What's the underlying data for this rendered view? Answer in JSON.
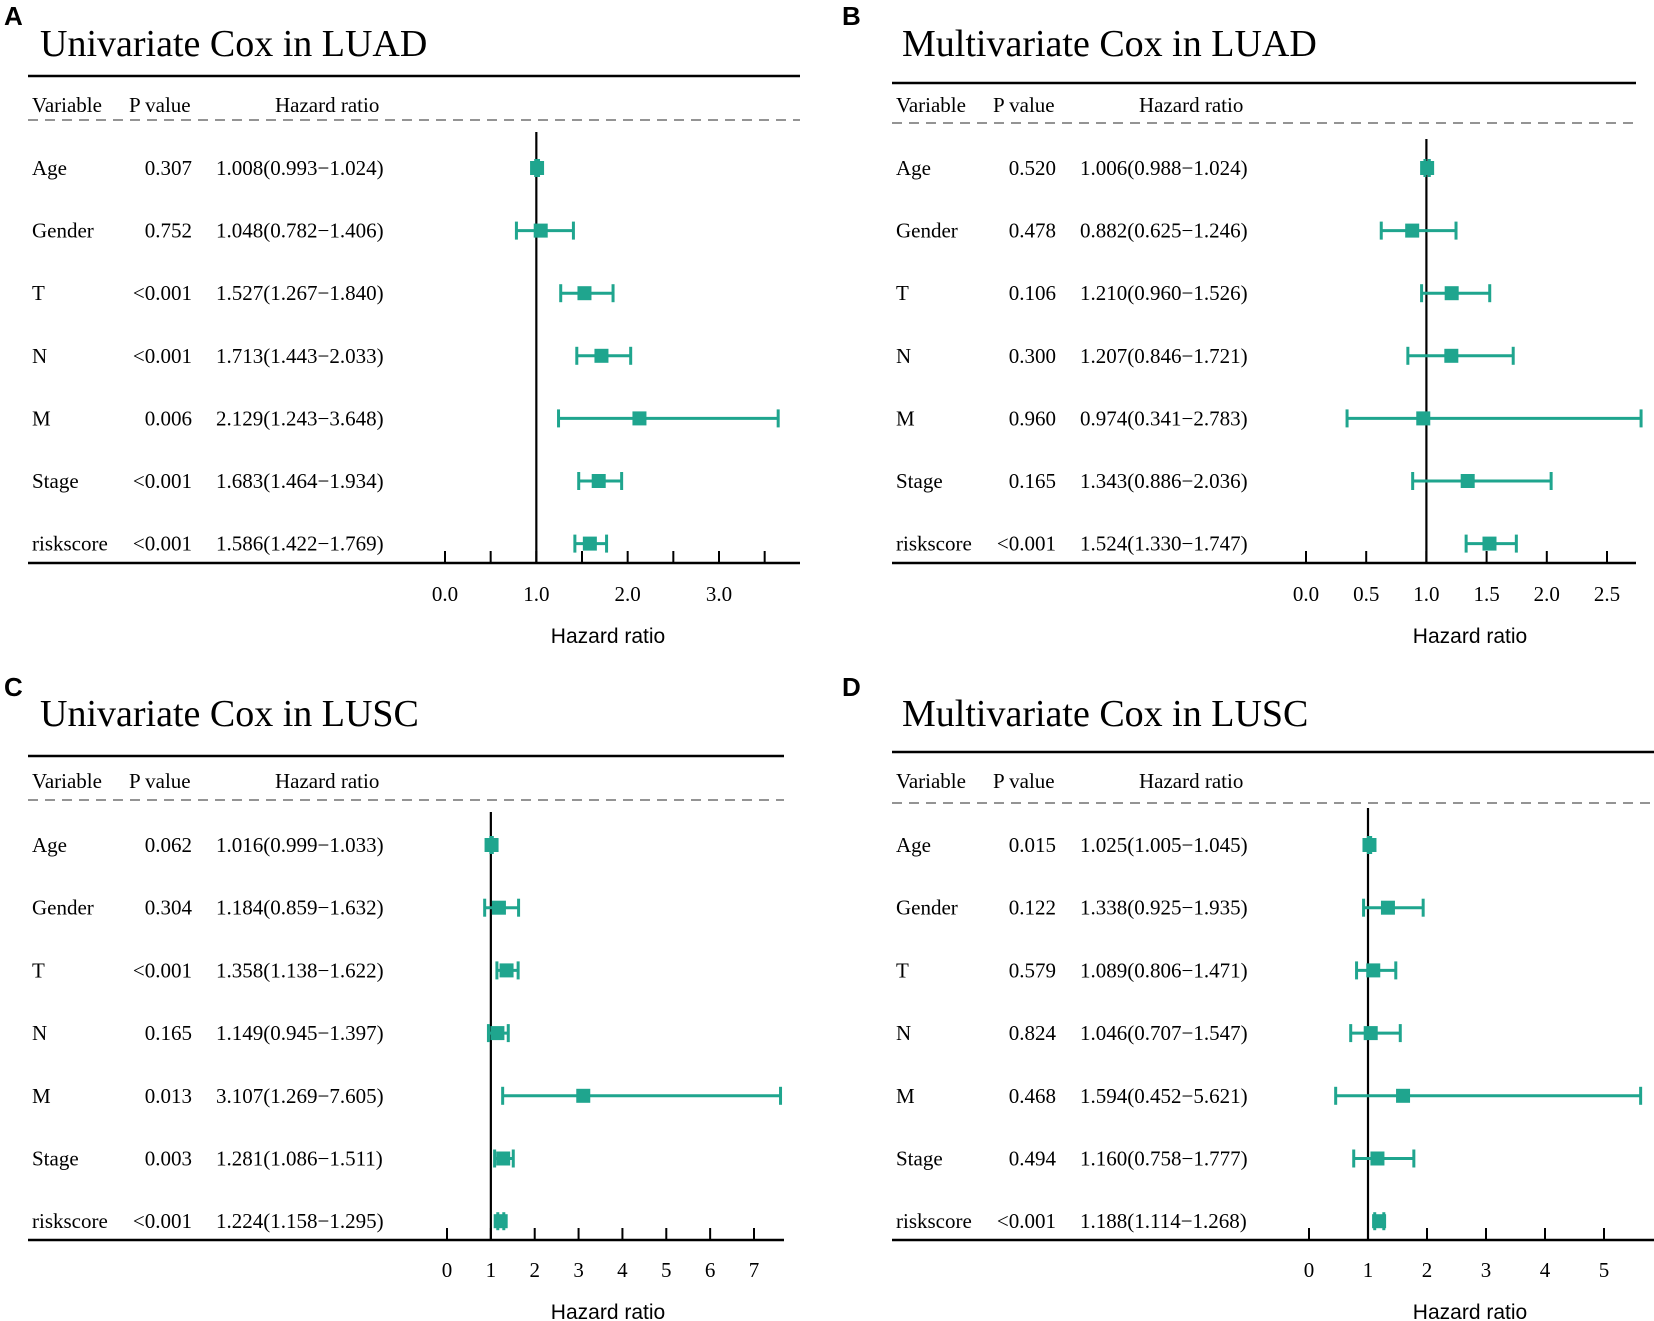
{
  "headers": {
    "variable": "Variable",
    "pvalue": "P value",
    "hr": "Hazard ratio"
  },
  "marker_color": "#1fa58e",
  "chart_data": [
    {
      "panel": "A",
      "type": "forest",
      "title": "Univariate Cox in LUAD",
      "xlabel": "Hazard ratio",
      "ticks": [
        0.0,
        0.5,
        1.0,
        1.5,
        2.0,
        2.5,
        3.0,
        3.5
      ],
      "tick_labels": [
        "0.0",
        "",
        "1.0",
        "",
        "2.0",
        "",
        "3.0",
        ""
      ],
      "ref_line": 1,
      "xlim": [
        0.0,
        3.8
      ],
      "rows": [
        {
          "variable": "Age",
          "pvalue": "0.307",
          "hr_text": "1.008(0.993−1.024)",
          "hr": 1.008,
          "lower": 0.993,
          "upper": 1.024
        },
        {
          "variable": "Gender",
          "pvalue": "0.752",
          "hr_text": "1.048(0.782−1.406)",
          "hr": 1.048,
          "lower": 0.782,
          "upper": 1.406
        },
        {
          "variable": "T",
          "pvalue": "<0.001",
          "hr_text": "1.527(1.267−1.840)",
          "hr": 1.527,
          "lower": 1.267,
          "upper": 1.84
        },
        {
          "variable": "N",
          "pvalue": "<0.001",
          "hr_text": "1.713(1.443−2.033)",
          "hr": 1.713,
          "lower": 1.443,
          "upper": 2.033
        },
        {
          "variable": "M",
          "pvalue": "0.006",
          "hr_text": "2.129(1.243−3.648)",
          "hr": 2.129,
          "lower": 1.243,
          "upper": 3.648
        },
        {
          "variable": "Stage",
          "pvalue": "<0.001",
          "hr_text": "1.683(1.464−1.934)",
          "hr": 1.683,
          "lower": 1.464,
          "upper": 1.934
        },
        {
          "variable": "riskscore",
          "pvalue": "<0.001",
          "hr_text": "1.586(1.422−1.769)",
          "hr": 1.586,
          "lower": 1.422,
          "upper": 1.769
        }
      ]
    },
    {
      "panel": "B",
      "type": "forest",
      "title": "Multivariate Cox in LUAD",
      "xlabel": "Hazard ratio",
      "ticks": [
        0.0,
        0.5,
        1.0,
        1.5,
        2.0,
        2.5
      ],
      "tick_labels": [
        "0.0",
        "0.5",
        "1.0",
        "1.5",
        "2.0",
        "2.5"
      ],
      "ref_line": 1,
      "xlim": [
        0.0,
        2.8
      ],
      "rows": [
        {
          "variable": "Age",
          "pvalue": "0.520",
          "hr_text": "1.006(0.988−1.024)",
          "hr": 1.006,
          "lower": 0.988,
          "upper": 1.024
        },
        {
          "variable": "Gender",
          "pvalue": "0.478",
          "hr_text": "0.882(0.625−1.246)",
          "hr": 0.882,
          "lower": 0.625,
          "upper": 1.246
        },
        {
          "variable": "T",
          "pvalue": "0.106",
          "hr_text": "1.210(0.960−1.526)",
          "hr": 1.21,
          "lower": 0.96,
          "upper": 1.526
        },
        {
          "variable": "N",
          "pvalue": "0.300",
          "hr_text": "1.207(0.846−1.721)",
          "hr": 1.207,
          "lower": 0.846,
          "upper": 1.721
        },
        {
          "variable": "M",
          "pvalue": "0.960",
          "hr_text": "0.974(0.341−2.783)",
          "hr": 0.974,
          "lower": 0.341,
          "upper": 2.783
        },
        {
          "variable": "Stage",
          "pvalue": "0.165",
          "hr_text": "1.343(0.886−2.036)",
          "hr": 1.343,
          "lower": 0.886,
          "upper": 2.036
        },
        {
          "variable": "riskscore",
          "pvalue": "<0.001",
          "hr_text": "1.524(1.330−1.747)",
          "hr": 1.524,
          "lower": 1.33,
          "upper": 1.747
        }
      ]
    },
    {
      "panel": "C",
      "type": "forest",
      "title": "Univariate Cox in LUSC",
      "xlabel": "Hazard ratio",
      "ticks": [
        0,
        1,
        2,
        3,
        4,
        5,
        6,
        7
      ],
      "tick_labels": [
        "0",
        "1",
        "2",
        "3",
        "4",
        "5",
        "6",
        "7"
      ],
      "ref_line": 1,
      "xlim": [
        0,
        7.75
      ],
      "rows": [
        {
          "variable": "Age",
          "pvalue": "0.062",
          "hr_text": "1.016(0.999−1.033)",
          "hr": 1.016,
          "lower": 0.999,
          "upper": 1.033
        },
        {
          "variable": "Gender",
          "pvalue": "0.304",
          "hr_text": "1.184(0.859−1.632)",
          "hr": 1.184,
          "lower": 0.859,
          "upper": 1.632
        },
        {
          "variable": "T",
          "pvalue": "<0.001",
          "hr_text": "1.358(1.138−1.622)",
          "hr": 1.358,
          "lower": 1.138,
          "upper": 1.622
        },
        {
          "variable": "N",
          "pvalue": "0.165",
          "hr_text": "1.149(0.945−1.397)",
          "hr": 1.149,
          "lower": 0.945,
          "upper": 1.397
        },
        {
          "variable": "M",
          "pvalue": "0.013",
          "hr_text": "3.107(1.269−7.605)",
          "hr": 3.107,
          "lower": 1.269,
          "upper": 7.605
        },
        {
          "variable": "Stage",
          "pvalue": "0.003",
          "hr_text": "1.281(1.086−1.511)",
          "hr": 1.281,
          "lower": 1.086,
          "upper": 1.511
        },
        {
          "variable": "riskscore",
          "pvalue": "<0.001",
          "hr_text": "1.224(1.158−1.295)",
          "hr": 1.224,
          "lower": 1.158,
          "upper": 1.295
        }
      ]
    },
    {
      "panel": "D",
      "type": "forest",
      "title": "Multivariate Cox in LUSC",
      "xlabel": "Hazard ratio",
      "ticks": [
        0,
        1,
        2,
        3,
        4,
        5
      ],
      "tick_labels": [
        "0",
        "1",
        "2",
        "3",
        "4",
        "5"
      ],
      "ref_line": 1,
      "xlim": [
        0,
        5.7
      ],
      "rows": [
        {
          "variable": "Age",
          "pvalue": "0.015",
          "hr_text": "1.025(1.005−1.045)",
          "hr": 1.025,
          "lower": 1.005,
          "upper": 1.045
        },
        {
          "variable": "Gender",
          "pvalue": "0.122",
          "hr_text": "1.338(0.925−1.935)",
          "hr": 1.338,
          "lower": 0.925,
          "upper": 1.935
        },
        {
          "variable": "T",
          "pvalue": "0.579",
          "hr_text": "1.089(0.806−1.471)",
          "hr": 1.089,
          "lower": 0.806,
          "upper": 1.471
        },
        {
          "variable": "N",
          "pvalue": "0.824",
          "hr_text": "1.046(0.707−1.547)",
          "hr": 1.046,
          "lower": 0.707,
          "upper": 1.547
        },
        {
          "variable": "M",
          "pvalue": "0.468",
          "hr_text": "1.594(0.452−5.621)",
          "hr": 1.594,
          "lower": 0.452,
          "upper": 5.621
        },
        {
          "variable": "Stage",
          "pvalue": "0.494",
          "hr_text": "1.160(0.758−1.777)",
          "hr": 1.16,
          "lower": 0.758,
          "upper": 1.777
        },
        {
          "variable": "riskscore",
          "pvalue": "<0.001",
          "hr_text": "1.188(1.114−1.268)",
          "hr": 1.188,
          "lower": 1.114,
          "upper": 1.268
        }
      ]
    }
  ]
}
